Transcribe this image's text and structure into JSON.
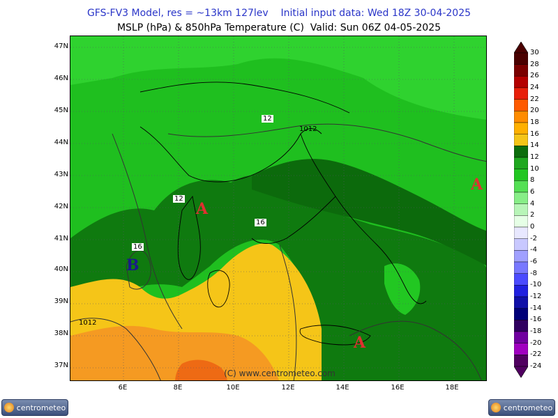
{
  "header": {
    "line1": "GFS-FV3 Model, res = ~13km 127lev    Initial input data: Wed 18Z 30-04-2025",
    "line2": "MSLP (hPa) & 850hPa Temperature (C)  Valid: Sun 06Z 04-05-2025"
  },
  "axes": {
    "lat_labels": [
      "47N",
      "46N",
      "45N",
      "44N",
      "43N",
      "42N",
      "41N",
      "40N",
      "39N",
      "38N",
      "37N"
    ],
    "lon_labels": [
      "6E",
      "8E",
      "10E",
      "12E",
      "14E",
      "16E",
      "18E"
    ]
  },
  "map": {
    "pressure_centers": [
      {
        "label": "A",
        "type": "high"
      },
      {
        "label": "A",
        "type": "high"
      },
      {
        "label": "A",
        "type": "high"
      },
      {
        "label": "B",
        "type": "low"
      }
    ],
    "isobar_labels": [
      "1012",
      "1012"
    ],
    "isotherm_labels": [
      "12",
      "12",
      "16",
      "16"
    ],
    "watermark": "(C) www.centrometeo.com"
  },
  "colorbar": {
    "labels": [
      "30",
      "28",
      "26",
      "24",
      "22",
      "20",
      "18",
      "16",
      "14",
      "12",
      "10",
      "8",
      "6",
      "4",
      "2",
      "0",
      "-2",
      "-4",
      "-6",
      "-8",
      "-10",
      "-12",
      "-14",
      "-16",
      "-18",
      "-20",
      "-22",
      "-24"
    ],
    "colors": [
      "#4a0000",
      "#7a0000",
      "#b40000",
      "#e8200a",
      "#ff5a00",
      "#ff8c00",
      "#ffb000",
      "#f5c518",
      "#0c6e0c",
      "#1fa81f",
      "#22c722",
      "#55e055",
      "#88ee88",
      "#b8f5b8",
      "#e6ffe6",
      "#e8e8ff",
      "#c8c8ff",
      "#a0a0ff",
      "#7878ff",
      "#4b4bff",
      "#2020e0",
      "#1010a8",
      "#000078",
      "#300060",
      "#7000a0",
      "#a000c0",
      "#500060"
    ]
  },
  "logos": {
    "left": "centrometeo",
    "right": "centrometeo"
  }
}
